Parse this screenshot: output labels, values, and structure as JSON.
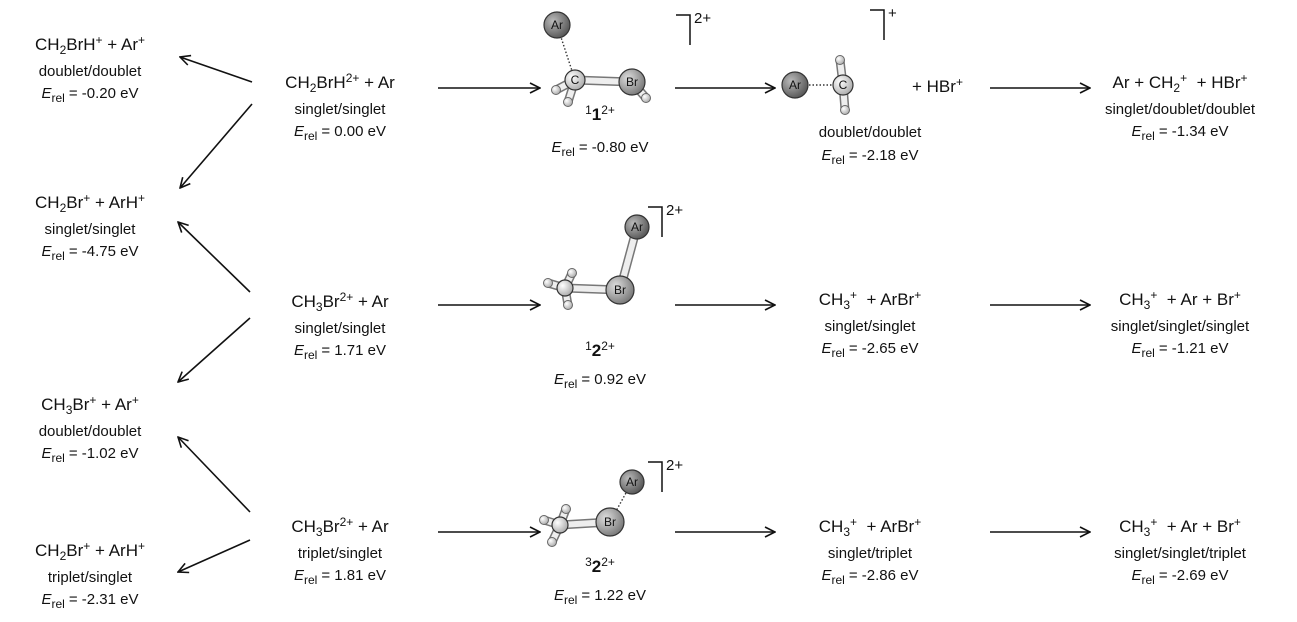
{
  "energy_symbol": "E",
  "energy_subscript": "rel",
  "species": [
    {
      "formula": [
        "CH",
        "2",
        "BrH",
        "+",
        " + Ar",
        "+"
      ],
      "state": "doublet/doublet",
      "energy": "= -0.20 eV"
    },
    {
      "formula": [
        "CH",
        "2",
        "Br",
        "+",
        " + ArH",
        "+"
      ],
      "state": "singlet/singlet",
      "energy": "= -4.75 eV"
    },
    {
      "formula": [
        "CH",
        "3",
        "Br",
        "+",
        " + Ar",
        "+"
      ],
      "state": "doublet/doublet",
      "energy": "= -1.02 eV"
    },
    {
      "formula": [
        "CH",
        "2",
        "Br",
        "+",
        " + ArH",
        "+"
      ],
      "state": "triplet/singlet",
      "energy": "= -2.31 eV"
    },
    {
      "formula": [
        "CH",
        "2",
        "BrH",
        "2+",
        " + Ar"
      ],
      "state": "singlet/singlet",
      "energy": "= 0.00 eV"
    },
    {
      "formula": [
        "CH",
        "3",
        "Br",
        "2+",
        " + Ar"
      ],
      "state": "singlet/singlet",
      "energy": "= 1.71 eV"
    },
    {
      "formula": [
        "CH",
        "3",
        "Br",
        "2+",
        " + Ar"
      ],
      "state": "triplet/singlet",
      "energy": "= 1.81 eV"
    },
    {
      "formula": [
        "CH",
        "3",
        "+",
        "  + ArBr",
        "+"
      ],
      "state": "singlet/singlet",
      "energy": "= -2.65 eV"
    },
    {
      "formula": [
        "CH",
        "3",
        "+",
        "  + ArBr",
        "+"
      ],
      "state": "singlet/triplet",
      "energy": "= -2.86 eV"
    },
    {
      "formula": [
        "Ar + CH",
        "2",
        "+",
        "  + HBr",
        "+"
      ],
      "state": "singlet/doublet/doublet",
      "energy": "= -1.34 eV"
    },
    {
      "formula": [
        "CH",
        "3",
        "+",
        "  + Ar + Br",
        "+"
      ],
      "state": "singlet/singlet/singlet",
      "energy": "= -1.21 eV"
    },
    {
      "formula": [
        "CH",
        "3",
        "+",
        "  + Ar + Br",
        "+"
      ],
      "state": "singlet/singlet/triplet",
      "energy": "= -2.69 eV"
    }
  ],
  "intermediates": [
    {
      "atoms": [
        "Ar",
        "C",
        "Br"
      ],
      "charge": "2+",
      "label": {
        "spin": "1",
        "number": "1",
        "charge": "2+"
      },
      "energy": "= -0.80 eV"
    },
    {
      "atoms": [
        "Ar",
        "Br"
      ],
      "charge": "2+",
      "label": {
        "spin": "1",
        "number": "2",
        "charge": "2+"
      },
      "energy": "= 0.92 eV"
    },
    {
      "atoms": [
        "Ar",
        "Br"
      ],
      "charge": "2+",
      "label": {
        "spin": "3",
        "number": "2",
        "charge": "2+"
      },
      "energy": "= 1.22 eV"
    }
  ],
  "product": {
    "atoms": [
      "Ar",
      "C"
    ],
    "charge": "+",
    "formula": [
      "+ HBr",
      "+"
    ],
    "state": "doublet/doublet",
    "energy": "= -2.18 eV"
  }
}
